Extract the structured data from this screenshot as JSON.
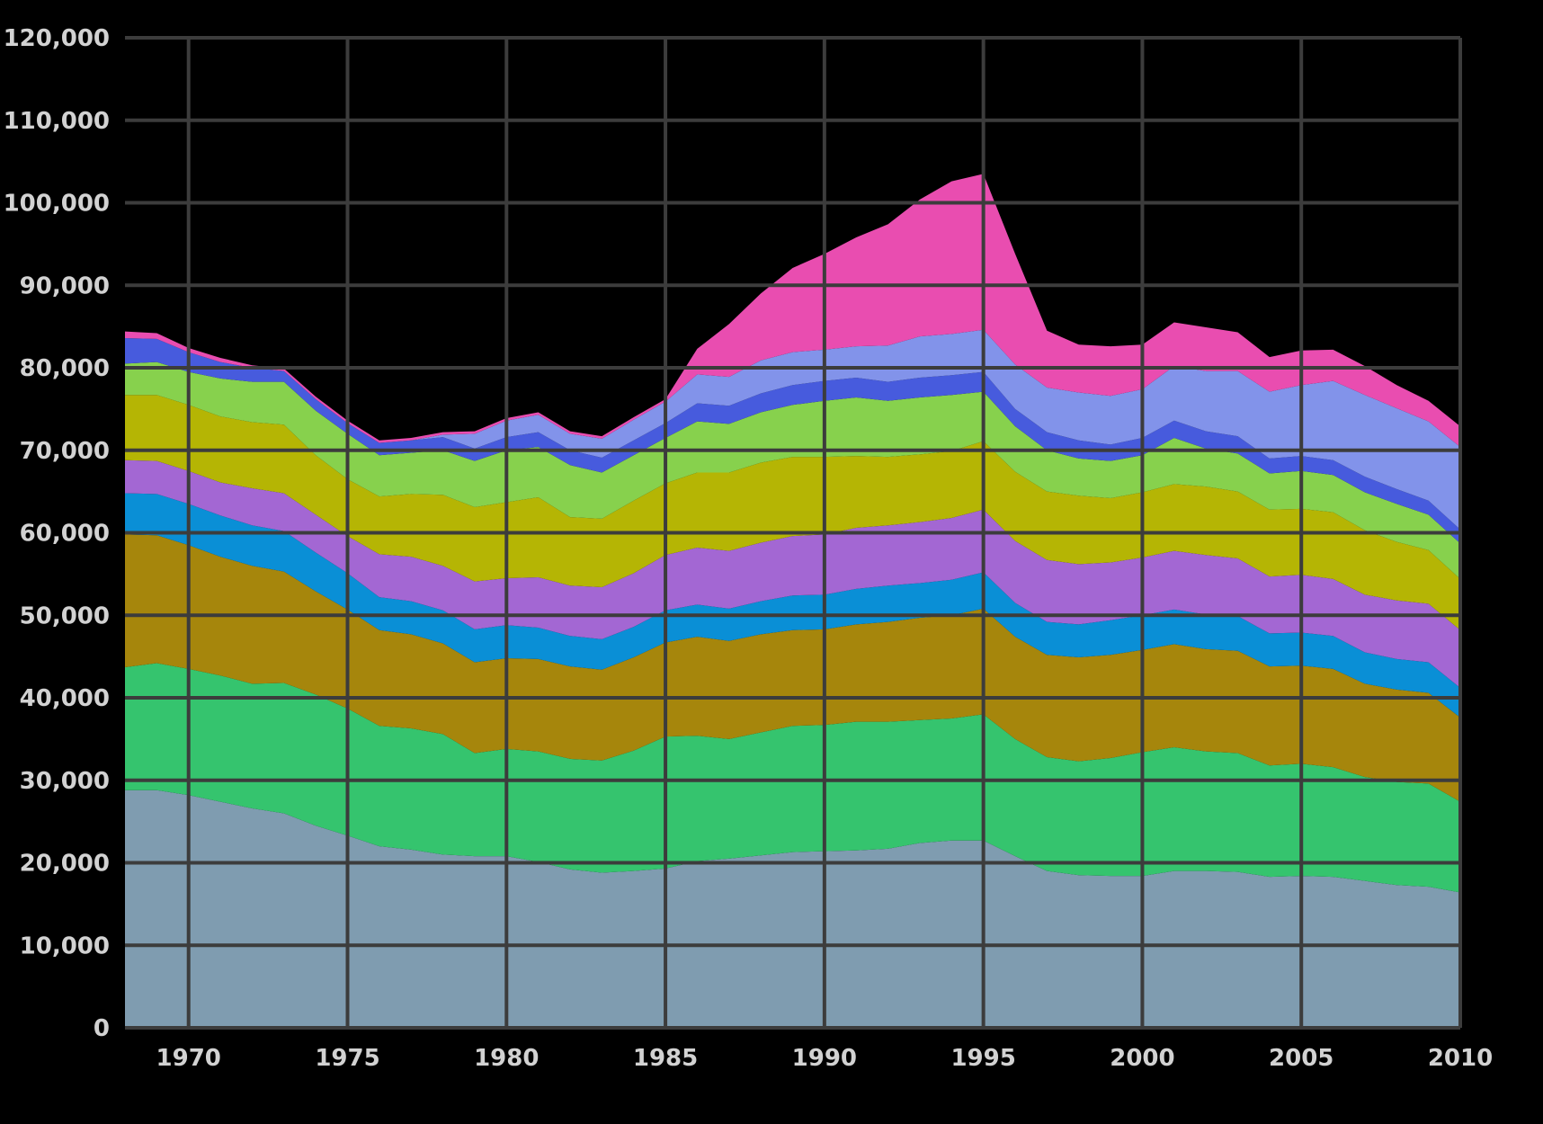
{
  "chart_data": {
    "type": "area",
    "stacked": true,
    "title": "",
    "xlabel": "",
    "ylabel": "",
    "xlim": [
      1968,
      2010
    ],
    "ylim": [
      0,
      120000
    ],
    "x_ticks": [
      "1970",
      "1975",
      "1980",
      "1985",
      "1990",
      "1995",
      "2000",
      "2005",
      "2010"
    ],
    "y_ticks": [
      "0",
      "10,000",
      "20,000",
      "30,000",
      "40,000",
      "50,000",
      "60,000",
      "70,000",
      "80,000",
      "90,000",
      "100,000",
      "110,000",
      "120,000"
    ],
    "grid": true,
    "legend": "none",
    "x": [
      1968,
      1969,
      1970,
      1971,
      1972,
      1973,
      1974,
      1975,
      1976,
      1977,
      1978,
      1979,
      1980,
      1981,
      1982,
      1983,
      1984,
      1985,
      1986,
      1987,
      1988,
      1989,
      1990,
      1991,
      1992,
      1993,
      1994,
      1995,
      1996,
      1997,
      1998,
      1999,
      2000,
      2001,
      2002,
      2003,
      2004,
      2005,
      2006,
      2007,
      2008,
      2009,
      2010
    ],
    "series": [
      {
        "color": "#7f9cb0",
        "values": [
          28800,
          28800,
          28200,
          27400,
          26600,
          26000,
          24500,
          23300,
          22000,
          21600,
          21000,
          20800,
          20800,
          20100,
          19200,
          18800,
          19000,
          19300,
          20200,
          20500,
          20900,
          21300,
          21400,
          21500,
          21700,
          22400,
          22700,
          22700,
          20800,
          19000,
          18500,
          18400,
          18400,
          19000,
          19000,
          18900,
          18300,
          18400,
          18300,
          17800,
          17300,
          17100,
          16400
        ]
      },
      {
        "color": "#35c46e",
        "values": [
          14900,
          15400,
          15300,
          15300,
          15100,
          15800,
          15900,
          15400,
          14600,
          14700,
          14600,
          12500,
          13000,
          13400,
          13400,
          13600,
          14600,
          16000,
          15200,
          14500,
          14900,
          15300,
          15300,
          15600,
          15400,
          14900,
          14800,
          15300,
          14200,
          13800,
          13800,
          14300,
          15000,
          15000,
          14500,
          14400,
          13500,
          13600,
          13300,
          12600,
          12500,
          12500,
          11000
        ]
      },
      {
        "color": "#a6860c",
        "values": [
          16100,
          15500,
          15000,
          14400,
          14300,
          13500,
          12500,
          12000,
          11600,
          11400,
          11000,
          11000,
          11000,
          11200,
          11200,
          11000,
          11300,
          11400,
          12000,
          11900,
          11900,
          11600,
          11600,
          11800,
          12100,
          12400,
          12500,
          12800,
          12400,
          12400,
          12600,
          12500,
          12400,
          12500,
          12400,
          12400,
          12000,
          11900,
          11900,
          11300,
          11200,
          11000,
          10200
        ]
      },
      {
        "color": "#0a8fd6",
        "values": [
          5000,
          5000,
          5000,
          5000,
          4900,
          4900,
          4700,
          4400,
          4000,
          4000,
          4000,
          4000,
          4000,
          3800,
          3700,
          3700,
          3700,
          3900,
          3900,
          3900,
          4000,
          4200,
          4200,
          4300,
          4400,
          4200,
          4300,
          4400,
          4100,
          4000,
          4000,
          4200,
          4200,
          4200,
          4200,
          4200,
          4000,
          4000,
          4000,
          3800,
          3700,
          3700,
          3600
        ]
      },
      {
        "color": "#a367d3",
        "values": [
          4000,
          4000,
          4000,
          4000,
          4500,
          4600,
          4600,
          4500,
          5200,
          5400,
          5400,
          5800,
          5700,
          6100,
          6100,
          6300,
          6500,
          6700,
          6900,
          7000,
          7100,
          7200,
          7300,
          7400,
          7300,
          7400,
          7500,
          7600,
          7500,
          7500,
          7300,
          7000,
          7000,
          7100,
          7200,
          7000,
          6900,
          7000,
          6900,
          7000,
          7100,
          7100,
          7000
        ]
      },
      {
        "color": "#b5b504",
        "values": [
          7900,
          8000,
          8000,
          8000,
          8000,
          8300,
          7200,
          6900,
          7000,
          7600,
          8600,
          9000,
          9200,
          9700,
          8300,
          8300,
          8800,
          8700,
          9100,
          9500,
          9700,
          9600,
          9400,
          8700,
          8300,
          8200,
          8100,
          8300,
          8400,
          8300,
          8300,
          7800,
          7900,
          8100,
          8300,
          8100,
          8100,
          8000,
          8100,
          7800,
          7100,
          6500,
          6200
        ]
      },
      {
        "color": "#87d14d",
        "values": [
          3800,
          4000,
          4000,
          4600,
          4900,
          5200,
          5400,
          5500,
          5000,
          5000,
          5400,
          5600,
          6300,
          6100,
          6300,
          5600,
          5500,
          5500,
          6200,
          5900,
          6100,
          6300,
          6800,
          7100,
          6800,
          6900,
          6800,
          6000,
          5500,
          5000,
          4500,
          4500,
          4500,
          5600,
          4600,
          4600,
          4400,
          4600,
          4500,
          4600,
          4600,
          4300,
          4300
        ]
      },
      {
        "color": "#475bdd",
        "values": [
          3100,
          2800,
          2400,
          2000,
          1700,
          1300,
          1400,
          1300,
          1500,
          1500,
          1600,
          1500,
          1600,
          1800,
          1800,
          1800,
          1800,
          1800,
          2200,
          2200,
          2300,
          2400,
          2400,
          2400,
          2300,
          2400,
          2400,
          2400,
          2100,
          2200,
          2200,
          2000,
          2100,
          2100,
          2100,
          2100,
          1800,
          1800,
          1800,
          1900,
          1800,
          1700,
          1700
        ]
      },
      {
        "color": "#8293ea",
        "values": [
          0,
          0,
          0,
          0,
          0,
          0,
          0,
          0,
          0,
          0,
          300,
          1800,
          2000,
          2100,
          2000,
          2300,
          2500,
          2600,
          3500,
          3500,
          4000,
          4000,
          3800,
          3800,
          4400,
          5000,
          5000,
          5100,
          5400,
          5400,
          5800,
          5900,
          5900,
          6600,
          7300,
          7900,
          8100,
          8600,
          9600,
          9900,
          9800,
          9600,
          10000
        ]
      },
      {
        "color": "#e94db0",
        "values": [
          800,
          700,
          500,
          500,
          300,
          300,
          300,
          300,
          300,
          300,
          300,
          300,
          300,
          300,
          300,
          300,
          300,
          300,
          3100,
          6400,
          8100,
          10200,
          11600,
          13200,
          14700,
          16600,
          18500,
          18900,
          13400,
          6900,
          5800,
          6000,
          5400,
          5300,
          5300,
          4700,
          4200,
          4200,
          3800,
          3500,
          2800,
          2500,
          2500
        ]
      }
    ]
  }
}
